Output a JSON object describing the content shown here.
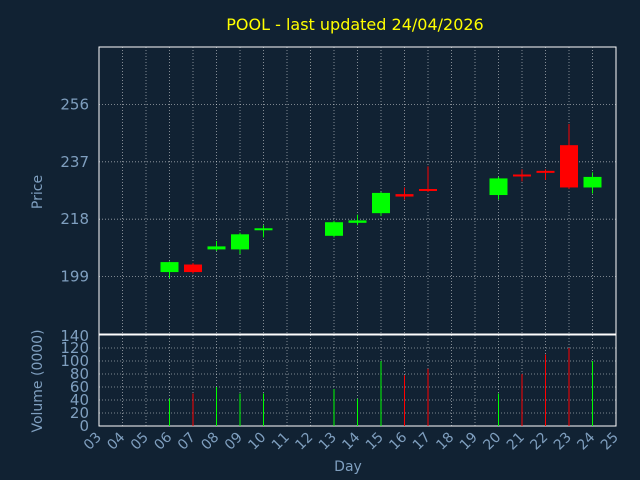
{
  "chart_data": {
    "type": "candlestick",
    "title": "POOL - last updated 24/04/2026",
    "xlabel": "Day",
    "price_panel": {
      "ylabel": "Price",
      "yticks": [
        199,
        218,
        237,
        256
      ],
      "ylim": [
        180,
        275
      ]
    },
    "volume_panel": {
      "ylabel": "Volume (0000)",
      "yticks": [
        0,
        20,
        40,
        60,
        80,
        100,
        120
      ],
      "top_tick": 140,
      "ylim": [
        0,
        140
      ]
    },
    "x_tick_labels": [
      "03",
      "04",
      "05",
      "06",
      "07",
      "08",
      "09",
      "10",
      "11",
      "12",
      "13",
      "14",
      "15",
      "16",
      "17",
      "18",
      "19",
      "20",
      "21",
      "22",
      "23",
      "24",
      "25"
    ],
    "candles": [
      {
        "day": "06",
        "open": 200.5,
        "close": 203.8,
        "high": 204.0,
        "low": 198.5,
        "volume": 42
      },
      {
        "day": "07",
        "open": 203.0,
        "close": 200.5,
        "high": 203.5,
        "low": 200.0,
        "volume": 50
      },
      {
        "day": "08",
        "open": 208.0,
        "close": 209.0,
        "high": 210.8,
        "low": 207.5,
        "volume": 60
      },
      {
        "day": "09",
        "open": 208.0,
        "close": 213.0,
        "high": 213.5,
        "low": 206.5,
        "volume": 50
      },
      {
        "day": "10",
        "open": 214.5,
        "close": 215.0,
        "high": 216.0,
        "low": 212.0,
        "volume": 50
      },
      {
        "day": "13",
        "open": 212.5,
        "close": 217.0,
        "high": 217.5,
        "low": 212.0,
        "volume": 57
      },
      {
        "day": "14",
        "open": 216.8,
        "close": 217.6,
        "high": 219.5,
        "low": 216.0,
        "volume": 42
      },
      {
        "day": "15",
        "open": 220.0,
        "close": 226.7,
        "high": 227.0,
        "low": 219.0,
        "volume": 100
      },
      {
        "day": "16",
        "open": 226.3,
        "close": 225.5,
        "high": 228.5,
        "low": 224.5,
        "volume": 78
      },
      {
        "day": "17",
        "open": 228.0,
        "close": 227.5,
        "high": 235.5,
        "low": 227.0,
        "volume": 88
      },
      {
        "day": "20",
        "open": 226.0,
        "close": 231.5,
        "high": 232.0,
        "low": 224.5,
        "volume": 50
      },
      {
        "day": "21",
        "open": 232.8,
        "close": 232.5,
        "high": 234.5,
        "low": 230.5,
        "volume": 80
      },
      {
        "day": "22",
        "open": 234.0,
        "close": 233.6,
        "high": 234.5,
        "low": 231.0,
        "volume": 110
      },
      {
        "day": "23",
        "open": 242.5,
        "close": 228.5,
        "high": 249.5,
        "low": 228.0,
        "volume": 120
      },
      {
        "day": "24",
        "open": 228.5,
        "close": 232.0,
        "high": 233.5,
        "low": 226.5,
        "volume": 100
      }
    ],
    "colors": {
      "background": "#112233",
      "grid": "#ffffff",
      "text": "#7f9fbf",
      "title": "#ffff00",
      "up": "#00ff00",
      "down": "#ff0000"
    },
    "grid": true
  }
}
